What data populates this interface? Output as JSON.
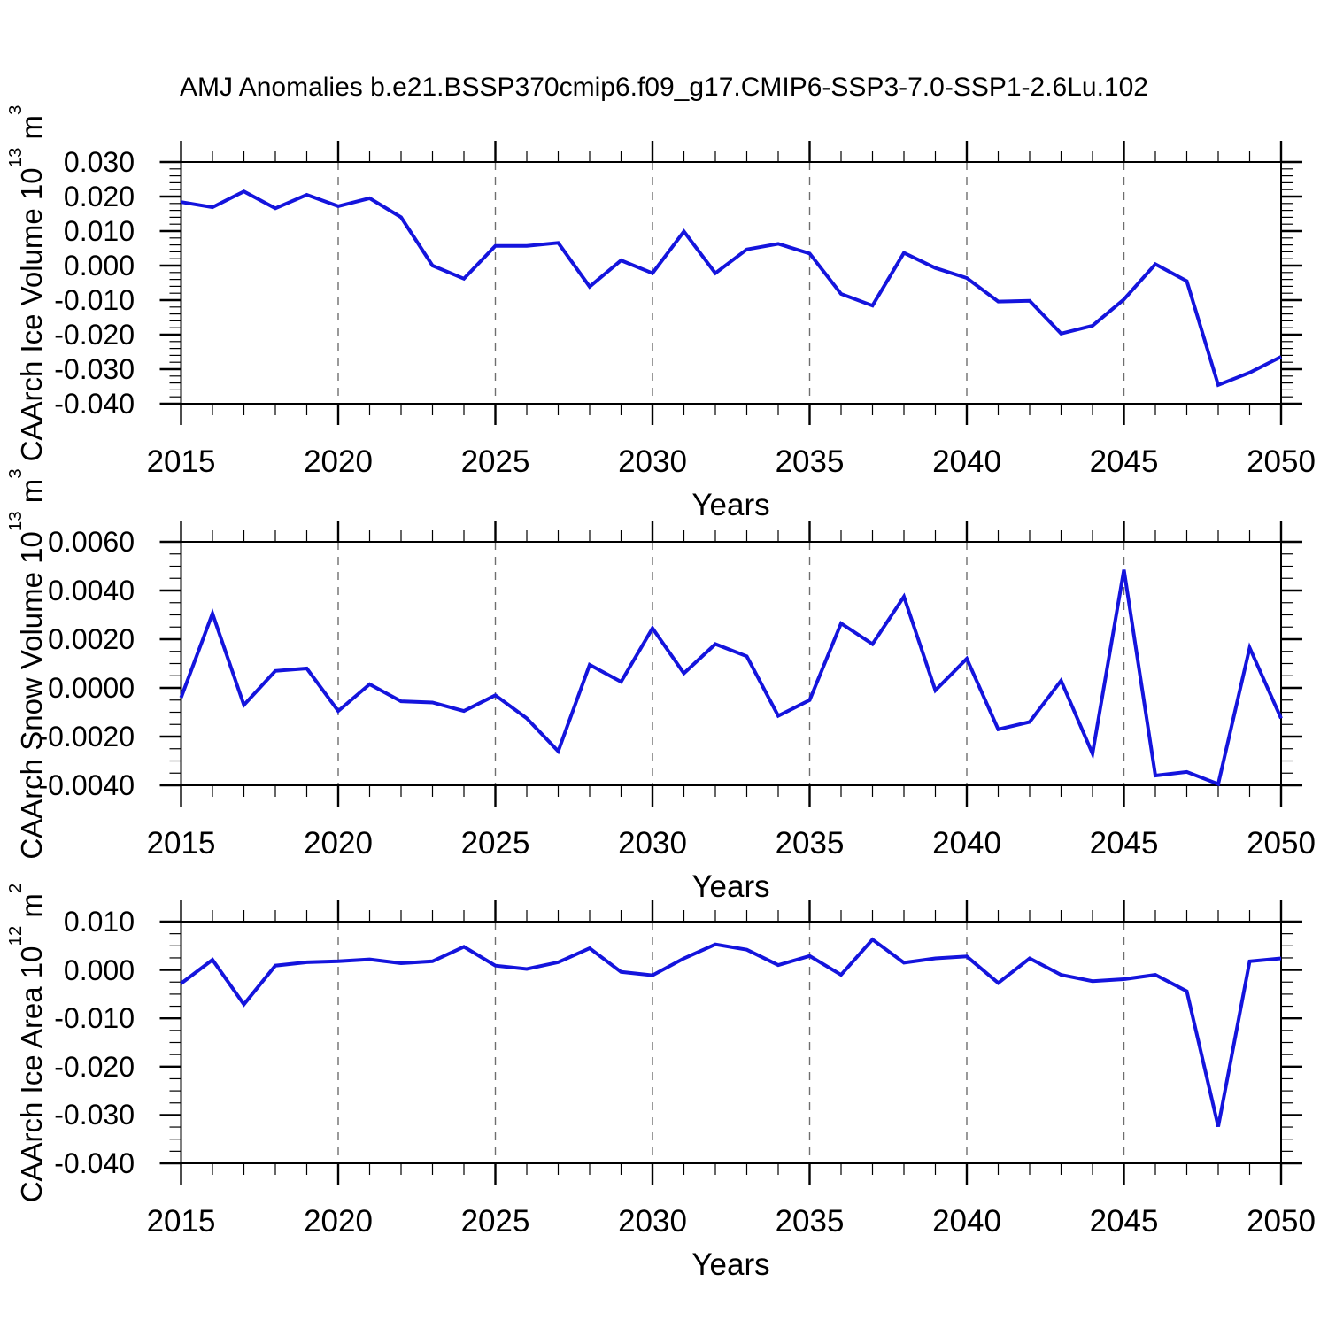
{
  "page": {
    "title": "AMJ Anomalies b.e21.BSSP370cmip6.f09_g17.CMIP6-SSP3-7.0-SSP1-2.6Lu.102"
  },
  "styles": {
    "line_color": "#1414dd",
    "axis_color": "#000000",
    "grid_color": "#6e6e6e",
    "text_color": "#000000",
    "background": "#ffffff"
  },
  "x_axis": {
    "label": "Years",
    "start": 2015,
    "end": 2050,
    "major_step": 5,
    "minor_step": 1,
    "tick_labels": [
      "2015",
      "2020",
      "2025",
      "2030",
      "2035",
      "2040",
      "2045",
      "2050"
    ],
    "gridline_years": [
      2020,
      2025,
      2030,
      2035,
      2040,
      2045
    ],
    "grid_style": "vertical-dashed"
  },
  "chart_data": [
    {
      "type": "line",
      "panel": "ice-volume",
      "ylabel": "CAArch Ice Volume 10^13 m^3",
      "ylabel_parts": [
        "CAArch Ice Volume 10",
        "13",
        " m",
        "3"
      ],
      "ylim": [
        -0.04,
        0.03
      ],
      "yticks": {
        "values": [
          0.03,
          0.02,
          0.01,
          0.0,
          -0.01,
          -0.02,
          -0.03,
          -0.04
        ],
        "labels": [
          "0.030",
          "0.020",
          "0.010",
          "0.000",
          "-0.010",
          "-0.020",
          "-0.030",
          "-0.040"
        ],
        "minor_step": 0.002
      },
      "x": [
        2015,
        2016,
        2017,
        2018,
        2019,
        2020,
        2021,
        2022,
        2023,
        2024,
        2025,
        2026,
        2027,
        2028,
        2029,
        2030,
        2031,
        2032,
        2033,
        2034,
        2035,
        2036,
        2037,
        2038,
        2039,
        2040,
        2041,
        2042,
        2043,
        2044,
        2045,
        2046,
        2047,
        2048,
        2049,
        2050
      ],
      "values": [
        0.0184,
        0.0169,
        0.0215,
        0.0166,
        0.0205,
        0.0172,
        0.0195,
        0.014,
        0.0,
        -0.0038,
        0.0057,
        0.0057,
        0.0066,
        -0.0061,
        0.0015,
        -0.0022,
        0.0099,
        -0.0022,
        0.0047,
        0.0063,
        0.0035,
        -0.0082,
        -0.0116,
        0.0037,
        -0.0007,
        -0.0036,
        -0.0104,
        -0.0102,
        -0.0197,
        -0.0174,
        -0.0098,
        0.0004,
        -0.0045,
        -0.0346,
        -0.031,
        -0.0264
      ]
    },
    {
      "type": "line",
      "panel": "snow-volume",
      "ylabel": "CAArch Snow Volume 10^13 m^3",
      "ylabel_parts": [
        "CAArch Snow Volume 10",
        "13",
        " m",
        "3"
      ],
      "ylim": [
        -0.004,
        0.006
      ],
      "yticks": {
        "values": [
          0.006,
          0.004,
          0.002,
          0.0,
          -0.002,
          -0.004
        ],
        "labels": [
          "0.0060",
          "0.0040",
          "0.0020",
          "0.0000",
          "-0.0020",
          "-0.0040"
        ],
        "minor_step": 0.0005
      },
      "x": [
        2015,
        2016,
        2017,
        2018,
        2019,
        2020,
        2021,
        2022,
        2023,
        2024,
        2025,
        2026,
        2027,
        2028,
        2029,
        2030,
        2031,
        2032,
        2033,
        2034,
        2035,
        2036,
        2037,
        2038,
        2039,
        2040,
        2041,
        2042,
        2043,
        2044,
        2045,
        2046,
        2047,
        2048,
        2049,
        2050
      ],
      "values": [
        -0.0004,
        0.00305,
        -0.0007,
        0.0007,
        0.0008,
        -0.00095,
        0.00015,
        -0.00055,
        -0.0006,
        -0.00095,
        -0.0003,
        -0.00125,
        -0.0026,
        0.00095,
        0.00025,
        0.00245,
        0.0006,
        0.0018,
        0.0013,
        -0.00115,
        -0.0005,
        0.00265,
        0.0018,
        0.00375,
        -0.0001,
        0.0012,
        -0.0017,
        -0.0014,
        0.0003,
        -0.0027,
        0.00485,
        -0.0036,
        -0.00345,
        -0.00395,
        0.00165,
        -0.00125
      ]
    },
    {
      "type": "line",
      "panel": "ice-area",
      "ylabel": "CAArch Ice Area 10^12 m^2",
      "ylabel_parts": [
        "CAArch Ice Area 10",
        "12",
        " m",
        "2"
      ],
      "ylim": [
        -0.04,
        0.01
      ],
      "yticks": {
        "values": [
          0.01,
          0.0,
          -0.01,
          -0.02,
          -0.03,
          -0.04
        ],
        "labels": [
          "0.010",
          "0.000",
          "-0.010",
          "-0.020",
          "-0.030",
          "-0.040"
        ],
        "minor_step": 0.0025
      },
      "x": [
        2015,
        2016,
        2017,
        2018,
        2019,
        2020,
        2021,
        2022,
        2023,
        2024,
        2025,
        2026,
        2027,
        2028,
        2029,
        2030,
        2031,
        2032,
        2033,
        2034,
        2035,
        2036,
        2037,
        2038,
        2039,
        2040,
        2041,
        2042,
        2043,
        2044,
        2045,
        2046,
        2047,
        2048,
        2049,
        2050
      ],
      "values": [
        -0.0028,
        0.0021,
        -0.0071,
        0.0009,
        0.0016,
        0.0018,
        0.0022,
        0.0014,
        0.0018,
        0.0048,
        0.0009,
        0.0002,
        0.0016,
        0.0045,
        -0.0004,
        -0.0011,
        0.0024,
        0.0053,
        0.0042,
        0.001,
        0.0029,
        -0.001,
        0.0063,
        0.0015,
        0.0024,
        0.0028,
        -0.0027,
        0.0024,
        -0.001,
        -0.0023,
        -0.0019,
        -0.001,
        -0.0044,
        -0.0324,
        0.0018,
        0.0024
      ]
    }
  ]
}
